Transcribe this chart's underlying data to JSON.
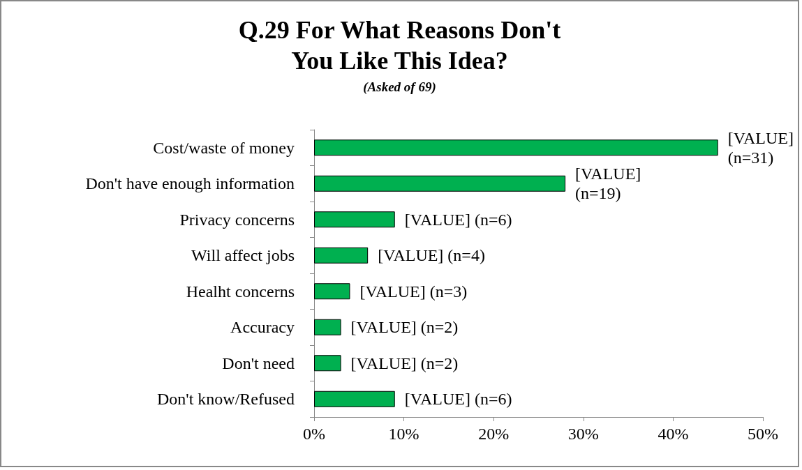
{
  "chart_data": {
    "type": "bar",
    "orientation": "horizontal",
    "title": "Q.29 For What Reasons Don't\nYou Like This Idea?",
    "subtitle": "(Asked of 69)",
    "categories": [
      "Cost/waste of money",
      "Don't have enough information",
      "Privacy concerns",
      "Will affect jobs",
      "Healht concerns",
      "Accuracy",
      "Don't need",
      "Don't know/Refused"
    ],
    "values": [
      45,
      28,
      9,
      6,
      4,
      3,
      3,
      9
    ],
    "color": "#00b050",
    "annotations": [
      {
        "text": "[VALUE]\n(n=31)",
        "x": 45,
        "y": "Cost/waste of money"
      },
      {
        "text": "[VALUE]\n(n=19)",
        "x": 28,
        "y": "Don't have enough information"
      },
      {
        "text": "[VALUE] (n=6)",
        "x": 9,
        "y": "Privacy concerns"
      },
      {
        "text": "[VALUE] (n=4)",
        "x": 6,
        "y": "Will affect jobs"
      },
      {
        "text": "[VALUE] (n=3)",
        "x": 4,
        "y": "Healht concerns"
      },
      {
        "text": "[VALUE] (n=2)",
        "x": 3,
        "y": "Accuracy"
      },
      {
        "text": "[VALUE] (n=2)",
        "x": 3,
        "y": "Don't need"
      },
      {
        "text": "[VALUE] (n=6)",
        "x": 9,
        "y": "Don't know/Refused"
      }
    ],
    "xlim": [
      0,
      50
    ],
    "xticks": [
      {
        "value": 0,
        "label": "0%"
      },
      {
        "value": 10,
        "label": "10%"
      },
      {
        "value": 20,
        "label": "20%"
      },
      {
        "value": 30,
        "label": "30%"
      },
      {
        "value": 40,
        "label": "40%"
      },
      {
        "value": 50,
        "label": "50%"
      }
    ],
    "grid": false
  }
}
